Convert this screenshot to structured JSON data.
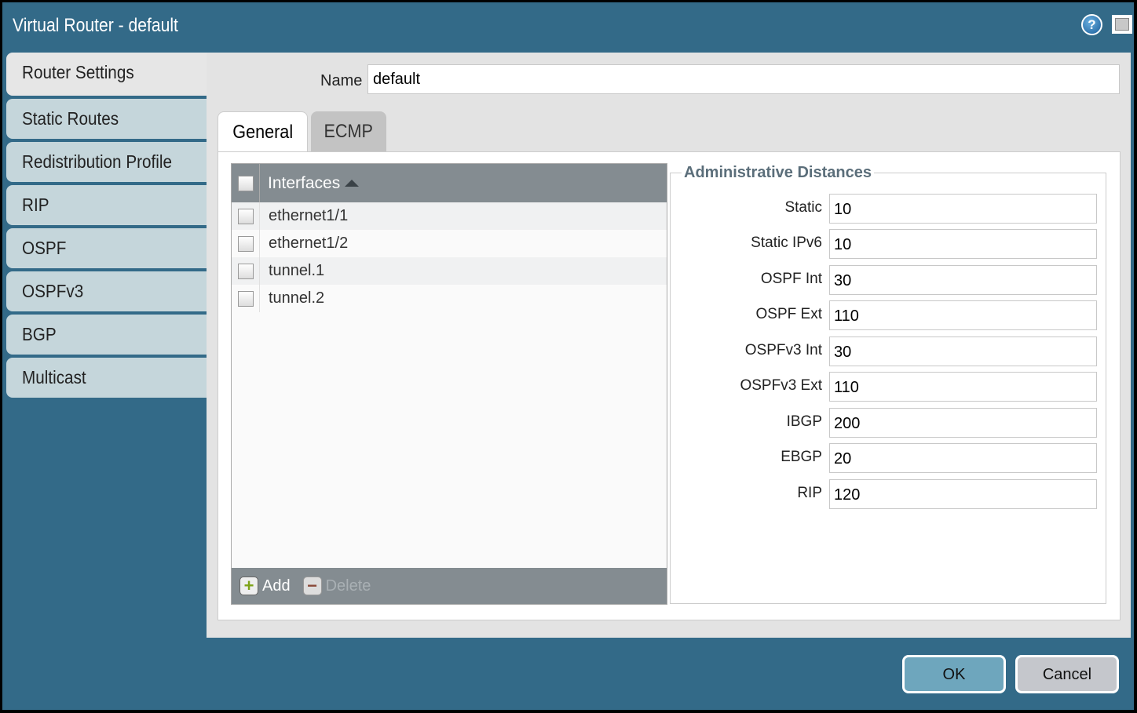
{
  "window": {
    "title": "Virtual Router - default",
    "help_icon": "help-icon",
    "maximize_icon": "maximize-icon"
  },
  "sidebar": {
    "items": [
      {
        "label": "Router Settings",
        "selected": true
      },
      {
        "label": "Static Routes"
      },
      {
        "label": "Redistribution Profile"
      },
      {
        "label": "RIP"
      },
      {
        "label": "OSPF"
      },
      {
        "label": "OSPFv3"
      },
      {
        "label": "BGP"
      },
      {
        "label": "Multicast"
      }
    ]
  },
  "name": {
    "label": "Name",
    "value": "default"
  },
  "tabs": [
    {
      "label": "General",
      "active": true
    },
    {
      "label": "ECMP"
    }
  ],
  "interfaces": {
    "header": "Interfaces",
    "rows": [
      "ethernet1/1",
      "ethernet1/2",
      "tunnel.1",
      "tunnel.2"
    ],
    "add_label": "Add",
    "delete_label": "Delete"
  },
  "admin_distances": {
    "title": "Administrative Distances",
    "rows": [
      {
        "label": "Static",
        "value": "10"
      },
      {
        "label": "Static IPv6",
        "value": "10"
      },
      {
        "label": "OSPF Int",
        "value": "30"
      },
      {
        "label": "OSPF Ext",
        "value": "110"
      },
      {
        "label": "OSPFv3 Int",
        "value": "30"
      },
      {
        "label": "OSPFv3 Ext",
        "value": "110"
      },
      {
        "label": "IBGP",
        "value": "200"
      },
      {
        "label": "EBGP",
        "value": "20"
      },
      {
        "label": "RIP",
        "value": "120"
      }
    ]
  },
  "buttons": {
    "ok": "OK",
    "cancel": "Cancel"
  },
  "colors": {
    "titlebar": "#336a88",
    "sidebar_item": "#c5d6db",
    "ok_button": "#6ea6bd"
  }
}
